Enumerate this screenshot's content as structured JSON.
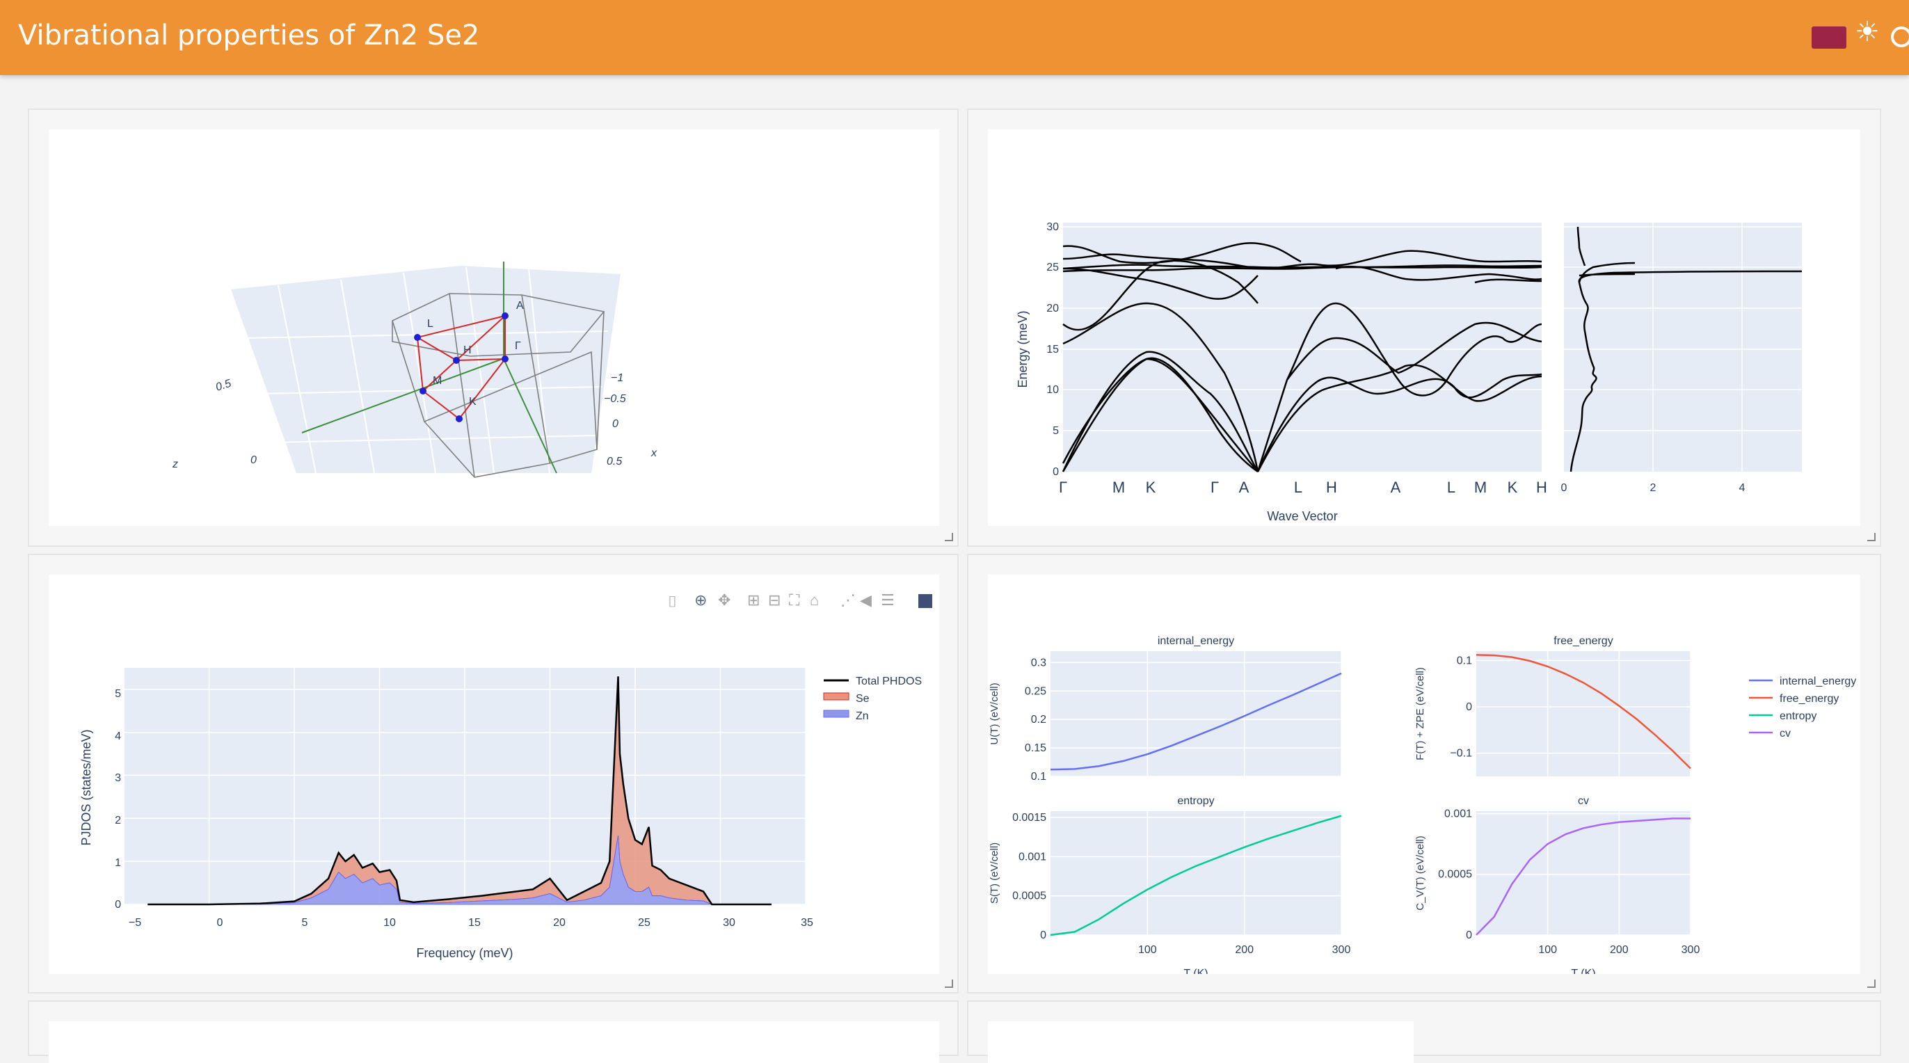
{
  "header": {
    "title": "Vibrational properties of Zn2 Se2"
  },
  "brillouin": {
    "labels": [
      "A",
      "L",
      "H",
      "Γ",
      "M",
      "K"
    ],
    "axis_ticks": [
      {
        "text": "0.5",
        "axis": "z"
      },
      {
        "text": "0",
        "axis": "z"
      },
      {
        "text": "z",
        "axis": "z-title"
      },
      {
        "text": "−1",
        "axis": "x"
      },
      {
        "text": "−0.5",
        "axis": "x"
      },
      {
        "text": "0",
        "axis": "x"
      },
      {
        "text": "0.5",
        "axis": "x"
      },
      {
        "text": "x",
        "axis": "x-title"
      }
    ]
  },
  "bands": {
    "ylabel": "Energy (meV)",
    "xlabel": "Wave Vector",
    "yticks": [
      "0",
      "5",
      "10",
      "15",
      "20",
      "25",
      "30"
    ],
    "kpoints": [
      "Γ",
      "M",
      "K",
      "Γ",
      "A",
      "L",
      "H",
      "A",
      "L",
      "M",
      "K",
      "H"
    ],
    "dos_ticks": [
      "0",
      "2",
      "4"
    ]
  },
  "pjdos": {
    "xlabel": "Frequency (meV)",
    "ylabel": "PJDOS (states/meV)",
    "xticks": [
      "−5",
      "0",
      "5",
      "10",
      "15",
      "20",
      "25",
      "30",
      "35"
    ],
    "yticks": [
      "0",
      "1",
      "2",
      "3",
      "4",
      "5"
    ],
    "legend": [
      "Total PHDOS",
      "Se",
      "Zn"
    ],
    "colors": {
      "total": "#000000",
      "se": "#e89580",
      "zn": "#8f95ef"
    },
    "toolbar": [
      "camera-icon",
      "zoom-icon",
      "pan-icon",
      "zoom-in-icon",
      "zoom-out-icon",
      "autoscale-icon",
      "home-icon",
      "spike-icon",
      "hover-closest-icon",
      "hover-compare-icon",
      "plotly-logo-icon"
    ]
  },
  "chart_data": [
    {
      "type": "area",
      "xlabel": "Frequency (meV)",
      "ylabel": "PJDOS (states/meV)",
      "xlim": [
        -5,
        35
      ],
      "ylim": [
        0,
        5.5
      ],
      "series": [
        {
          "name": "Total PHDOS",
          "x": [
            -3.6,
            0,
            3,
            5,
            6,
            7,
            7.6,
            8,
            8.5,
            9,
            9.6,
            10,
            10.6,
            11,
            11.2,
            12,
            14,
            16,
            17,
            18,
            19,
            20,
            21,
            22,
            23,
            23.5,
            24,
            24.1,
            24.3,
            24.6,
            25,
            25.4,
            25.8,
            26,
            26.5,
            27,
            28,
            29,
            29.5,
            33
          ],
          "y": [
            0,
            0,
            0.02,
            0.07,
            0.25,
            0.6,
            1.2,
            1.0,
            1.15,
            0.85,
            0.95,
            0.75,
            0.8,
            0.55,
            0.1,
            0.05,
            0.12,
            0.2,
            0.25,
            0.3,
            0.35,
            0.6,
            0.1,
            0.3,
            0.5,
            1.0,
            5.3,
            3.5,
            2.8,
            2.0,
            1.5,
            1.4,
            1.8,
            0.9,
            0.8,
            0.6,
            0.45,
            0.3,
            0,
            0
          ]
        },
        {
          "name": "Se",
          "x": [
            -3.6,
            0,
            3,
            5,
            6,
            7,
            7.6,
            8,
            8.5,
            9,
            9.6,
            10,
            10.6,
            11,
            11.2,
            12,
            14,
            16,
            17,
            18,
            19,
            20,
            21,
            22,
            23,
            23.5,
            24,
            24.1,
            24.3,
            24.6,
            25,
            25.4,
            25.8,
            26,
            26.5,
            27,
            28,
            29,
            29.5,
            33
          ],
          "y": [
            0,
            0,
            0.01,
            0.03,
            0.1,
            0.25,
            0.45,
            0.4,
            0.45,
            0.35,
            0.35,
            0.3,
            0.3,
            0.2,
            0.05,
            0.03,
            0.08,
            0.12,
            0.15,
            0.18,
            0.2,
            0.35,
            0.05,
            0.2,
            0.3,
            0.6,
            3.7,
            2.5,
            2.1,
            1.6,
            1.2,
            1.1,
            1.4,
            0.7,
            0.6,
            0.45,
            0.35,
            0.22,
            0,
            0
          ]
        },
        {
          "name": "Zn",
          "x": [
            -3.6,
            0,
            3,
            5,
            6,
            7,
            7.6,
            8,
            8.5,
            9,
            9.6,
            10,
            10.6,
            11,
            11.2,
            12,
            14,
            16,
            17,
            18,
            19,
            20,
            21,
            22,
            23,
            23.5,
            24,
            24.1,
            24.3,
            24.6,
            25,
            25.4,
            25.8,
            26,
            26.5,
            27,
            28,
            29,
            29.5,
            33
          ],
          "y": [
            0,
            0,
            0.01,
            0.04,
            0.15,
            0.35,
            0.75,
            0.6,
            0.7,
            0.5,
            0.6,
            0.45,
            0.5,
            0.35,
            0.05,
            0.02,
            0.04,
            0.08,
            0.1,
            0.12,
            0.15,
            0.25,
            0.05,
            0.1,
            0.2,
            0.4,
            1.6,
            1.0,
            0.7,
            0.4,
            0.3,
            0.3,
            0.4,
            0.2,
            0.2,
            0.15,
            0.1,
            0.08,
            0,
            0
          ]
        }
      ]
    },
    {
      "type": "line",
      "title": "internal_energy",
      "xlabel": "",
      "ylabel": "U(T) (eV/cell)",
      "x": [
        0,
        25,
        50,
        75,
        100,
        125,
        150,
        175,
        200,
        225,
        250,
        275,
        300
      ],
      "y": [
        0.112,
        0.113,
        0.118,
        0.127,
        0.139,
        0.154,
        0.171,
        0.188,
        0.206,
        0.225,
        0.243,
        0.262,
        0.281
      ],
      "yticks": [
        "0.1",
        "0.15",
        "0.2",
        "0.25",
        "0.3"
      ],
      "xlim": [
        0,
        300
      ],
      "ylim": [
        0.1,
        0.32
      ]
    },
    {
      "type": "line",
      "title": "free_energy",
      "xlabel": "",
      "ylabel": "F(T) + ZPE (eV/cell)",
      "x": [
        0,
        25,
        50,
        75,
        100,
        125,
        150,
        175,
        200,
        225,
        250,
        275,
        300
      ],
      "y": [
        0.112,
        0.111,
        0.107,
        0.099,
        0.087,
        0.071,
        0.052,
        0.029,
        0.002,
        -0.027,
        -0.06,
        -0.095,
        -0.133
      ],
      "yticks": [
        "−0.1",
        "0",
        "0.1"
      ],
      "xlim": [
        0,
        300
      ],
      "ylim": [
        -0.15,
        0.12
      ]
    },
    {
      "type": "line",
      "title": "entropy",
      "xlabel": "T (K)",
      "ylabel": "S(T) (eV/cell)",
      "x": [
        0,
        25,
        50,
        75,
        100,
        125,
        150,
        175,
        200,
        225,
        250,
        275,
        300
      ],
      "y": [
        0,
        4e-05,
        0.0002,
        0.0004,
        0.00058,
        0.00074,
        0.00088,
        0.001,
        0.00112,
        0.00123,
        0.00133,
        0.00143,
        0.00152
      ],
      "yticks": [
        "0",
        "0.0005",
        "0.001",
        "0.0015"
      ],
      "xticks": [
        "100",
        "200",
        "300"
      ],
      "xlim": [
        0,
        300
      ],
      "ylim": [
        0,
        0.00158
      ]
    },
    {
      "type": "line",
      "title": "cv",
      "xlabel": "T (K)",
      "ylabel": "C_V(T) (eV/cell)",
      "x": [
        0,
        25,
        50,
        75,
        100,
        125,
        150,
        175,
        200,
        225,
        250,
        275,
        300
      ],
      "y": [
        0,
        0.00015,
        0.00042,
        0.00062,
        0.00075,
        0.00083,
        0.00088,
        0.00091,
        0.00093,
        0.00094,
        0.00095,
        0.00096,
        0.00096
      ],
      "yticks": [
        "0",
        "0.0005",
        "0.001"
      ],
      "xticks": [
        "100",
        "200",
        "300"
      ],
      "xlim": [
        0,
        300
      ],
      "ylim": [
        0,
        0.00102
      ]
    }
  ],
  "thermo_legend": [
    {
      "name": "internal_energy",
      "color": "#636efa"
    },
    {
      "name": "free_energy",
      "color": "#ef553b"
    },
    {
      "name": "entropy",
      "color": "#00cc96"
    },
    {
      "name": "cv",
      "color": "#ab63fa"
    }
  ]
}
